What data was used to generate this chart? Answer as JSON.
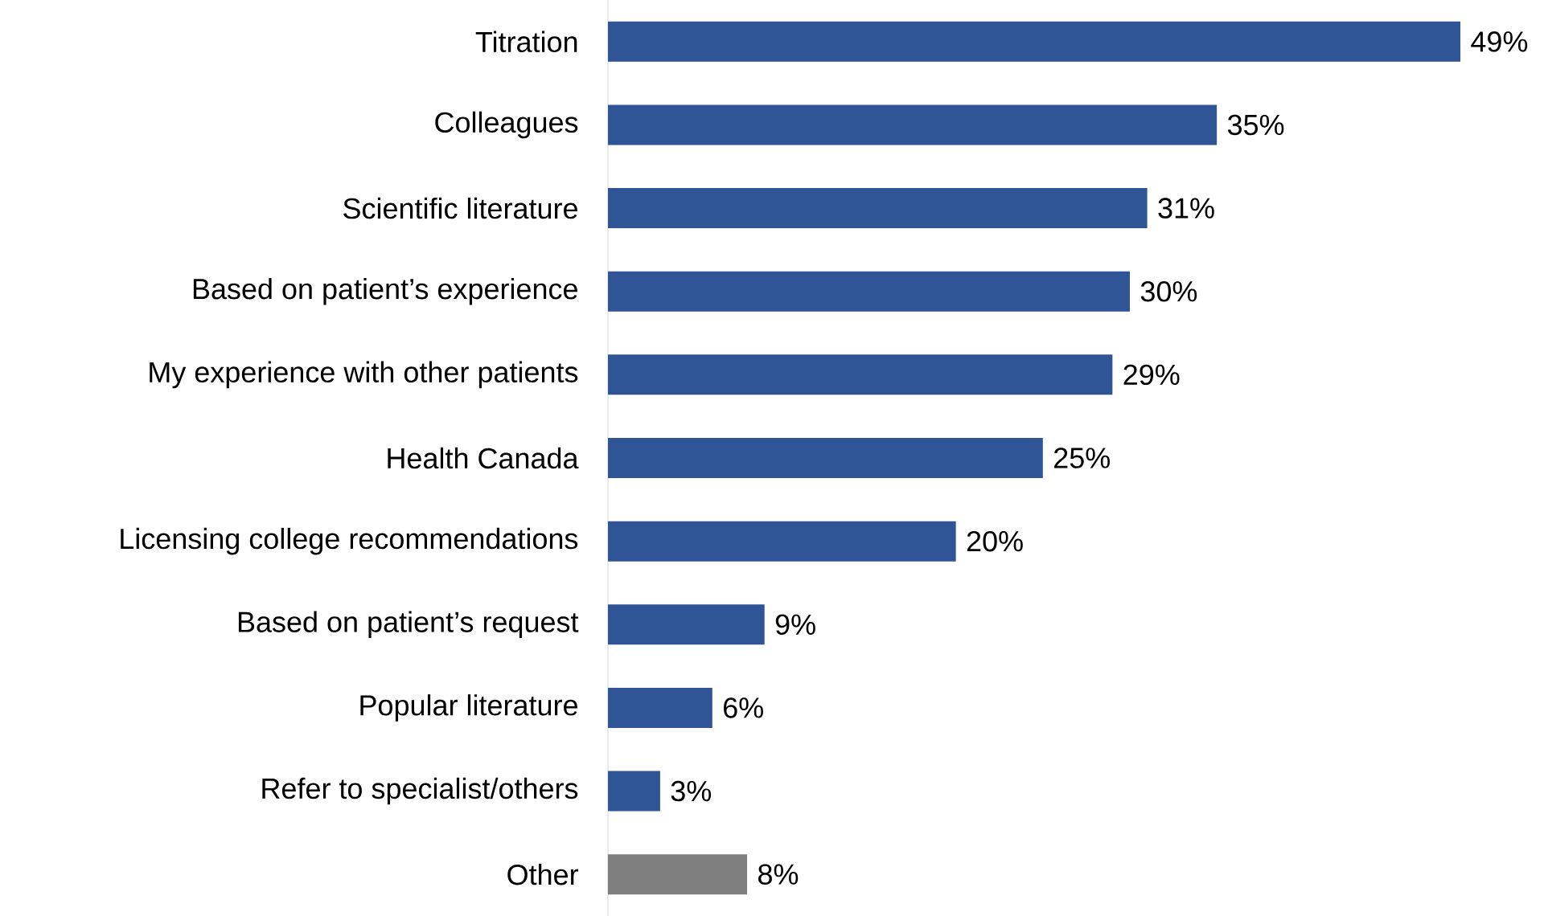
{
  "chart_data": {
    "type": "bar",
    "orientation": "horizontal",
    "categories": [
      "Titration",
      "Colleagues",
      "Scientific literature",
      "Based on patient’s experience",
      "My experience with other patients",
      "Health Canada",
      "Licensing college recommendations",
      "Based on patient’s request",
      "Popular literature",
      "Refer to specialist/others",
      "Other"
    ],
    "values": [
      49,
      35,
      31,
      30,
      29,
      25,
      20,
      9,
      6,
      3,
      8
    ],
    "value_labels": [
      "49%",
      "35%",
      "31%",
      "30%",
      "29%",
      "25%",
      "20%",
      "9%",
      "6%",
      "3%",
      "8%"
    ],
    "colors": [
      "#2f5597",
      "#2f5597",
      "#2f5597",
      "#2f5597",
      "#2f5597",
      "#2f5597",
      "#2f5597",
      "#2f5597",
      "#2f5597",
      "#2f5597",
      "#7f7f7f"
    ],
    "grid": false
  }
}
